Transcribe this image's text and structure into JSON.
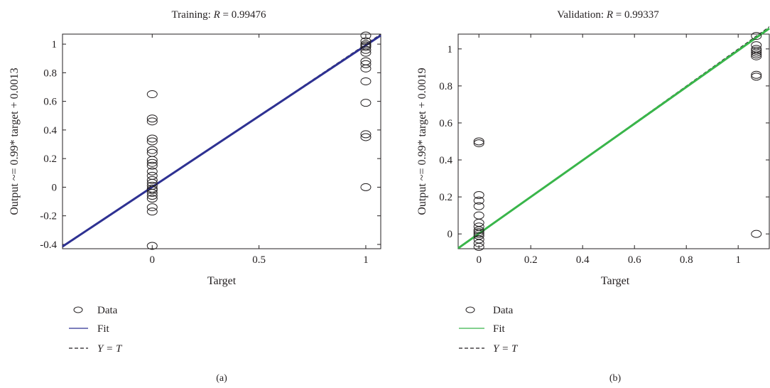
{
  "chart_data": [
    {
      "type": "scatter",
      "panel_label": "(a)",
      "title_prefix": "Training:",
      "title_r": "R",
      "title_suffix": " = 0.99476",
      "xlabel": "Target",
      "ylabel": "Output ~= 0.99* target + 0.0013",
      "xlim": [
        -0.42,
        1.07
      ],
      "ylim": [
        -0.43,
        1.07
      ],
      "xticks": [
        0,
        0.5,
        1
      ],
      "xtick_labels": [
        "0",
        "0.5",
        "1"
      ],
      "yticks": [
        -0.4,
        -0.2,
        0,
        0.2,
        0.4,
        0.6,
        0.8,
        1
      ],
      "ytick_labels": [
        "-0.4",
        "-0.2",
        "0",
        "0.2",
        "0.4",
        "0.6",
        "0.8",
        "1"
      ],
      "grid": false,
      "legend": [
        "Data",
        "Fit",
        "Y = T"
      ],
      "fit": {
        "slope": 0.99,
        "intercept": 0.0013,
        "color": "#2e3192"
      },
      "series": [
        {
          "name": "Data",
          "points": [
            [
              0,
              0.65
            ],
            [
              0,
              0.48
            ],
            [
              0,
              0.46
            ],
            [
              0,
              0.34
            ],
            [
              0,
              0.32
            ],
            [
              0,
              0.26
            ],
            [
              0,
              0.24
            ],
            [
              0,
              0.19
            ],
            [
              0,
              0.17
            ],
            [
              0,
              0.15
            ],
            [
              0,
              0.11
            ],
            [
              0,
              0.08
            ],
            [
              0,
              0.05
            ],
            [
              0,
              0.03
            ],
            [
              0,
              0.01
            ],
            [
              0,
              -0.01
            ],
            [
              0,
              -0.02
            ],
            [
              0,
              -0.04
            ],
            [
              0,
              -0.06
            ],
            [
              0,
              -0.08
            ],
            [
              0,
              -0.14
            ],
            [
              0,
              -0.17
            ],
            [
              0,
              -0.41
            ],
            [
              1,
              1.06
            ],
            [
              1,
              1.02
            ],
            [
              1,
              1.0
            ],
            [
              1,
              0.99
            ],
            [
              1,
              0.98
            ],
            [
              1,
              0.96
            ],
            [
              1,
              0.94
            ],
            [
              1,
              0.88
            ],
            [
              1,
              0.86
            ],
            [
              1,
              0.83
            ],
            [
              1,
              0.74
            ],
            [
              1,
              0.59
            ],
            [
              1,
              0.37
            ],
            [
              1,
              0.35
            ],
            [
              1,
              0.0
            ]
          ]
        }
      ]
    },
    {
      "type": "scatter",
      "panel_label": "(b)",
      "title_prefix": "Validation:",
      "title_r": "R",
      "title_suffix": " = 0.99337",
      "xlabel": "Target",
      "ylabel": "Output ~= 0.99* target + 0.0019",
      "xlim": [
        -0.08,
        1.12
      ],
      "ylim": [
        -0.08,
        1.08
      ],
      "xticks": [
        0,
        0.2,
        0.4,
        0.6,
        0.8,
        1
      ],
      "xtick_labels": [
        "0",
        "0.2",
        "0.4",
        "0.6",
        "0.8",
        "1"
      ],
      "yticks": [
        0,
        0.2,
        0.4,
        0.6,
        0.8,
        1
      ],
      "ytick_labels": [
        "0",
        "0.2",
        "0.4",
        "0.6",
        "0.8",
        "1"
      ],
      "grid": false,
      "legend": [
        "Data",
        "Fit",
        "Y = T"
      ],
      "fit": {
        "slope": 0.99,
        "intercept": 0.0019,
        "color": "#39b54a"
      },
      "series": [
        {
          "name": "Data",
          "points": [
            [
              0,
              0.5
            ],
            [
              0,
              0.49
            ],
            [
              0,
              0.21
            ],
            [
              0,
              0.18
            ],
            [
              0,
              0.15
            ],
            [
              0,
              0.1
            ],
            [
              0,
              0.06
            ],
            [
              0,
              0.04
            ],
            [
              0,
              0.02
            ],
            [
              0,
              0.01
            ],
            [
              0,
              0.0
            ],
            [
              0,
              -0.01
            ],
            [
              0,
              -0.03
            ],
            [
              0,
              -0.05
            ],
            [
              0,
              -0.07
            ],
            [
              1.07,
              1.07
            ],
            [
              1.07,
              1.02
            ],
            [
              1.07,
              1.0
            ],
            [
              1.07,
              0.99
            ],
            [
              1.07,
              0.98
            ],
            [
              1.07,
              0.97
            ],
            [
              1.07,
              0.96
            ],
            [
              1.07,
              0.86
            ],
            [
              1.07,
              0.85
            ],
            [
              1.07,
              0.0
            ]
          ]
        }
      ]
    }
  ]
}
